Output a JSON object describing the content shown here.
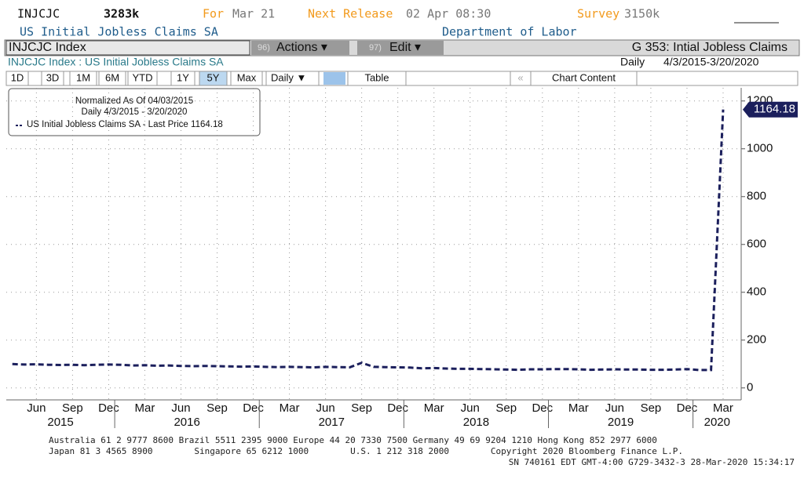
{
  "header": {
    "ticker": "INJCJC",
    "price": "3283k",
    "for_label": "For",
    "for_value": "Mar 21",
    "next_label": "Next Release",
    "next_value": "02 Apr 08:30",
    "survey_label": "Survey",
    "survey_value": "3150k",
    "name": "US Initial Jobless Claims SA",
    "source": "Department of Labor"
  },
  "toolbar": {
    "security": "INJCJC Index",
    "actions_num": "96)",
    "actions": "Actions ▾",
    "edit_num": "97)",
    "edit": "Edit ▾",
    "page": "G 353: Intial Jobless Claims"
  },
  "chart_header": {
    "title": "INJCJC Index : US Initial Jobless Claims SA",
    "frequency": "Daily",
    "range": "4/3/2015-3/20/2020"
  },
  "buttons": [
    "1D",
    "3D",
    "1M",
    "6M",
    "YTD",
    "1Y",
    "5Y",
    "Max",
    "Daily ▼",
    "Table",
    "«",
    "Chart Content"
  ],
  "legend": {
    "line1": "Normalized As Of 04/03/2015",
    "line2": "Daily 4/3/2015 - 3/20/2020",
    "last_price_label": "- Last Price"
  },
  "footer": [
    "Australia 61 2 9777 8600 Brazil 5511 2395 9000 Europe 44 20 7330 7500 Germany 49 69 9204 1210 Hong Kong 852 2977 6000",
    "Japan 81 3 4565 8900        Singapore 65 6212 1000        U.S. 1 212 318 2000        Copyright 2020 Bloomberg Finance L.P.",
    "SN 740161 EDT  GMT-4:00 G729-3432-3 28-Mar-2020 15:34:17"
  ],
  "chart_data": {
    "type": "line",
    "x": [
      "2015-04",
      "2015-05",
      "2015-06",
      "2015-07",
      "2015-08",
      "2015-09",
      "2015-10",
      "2015-11",
      "2015-12",
      "2016-01",
      "2016-02",
      "2016-03",
      "2016-04",
      "2016-05",
      "2016-06",
      "2016-07",
      "2016-08",
      "2016-09",
      "2016-10",
      "2016-11",
      "2016-12",
      "2017-01",
      "2017-02",
      "2017-03",
      "2017-04",
      "2017-05",
      "2017-06",
      "2017-07",
      "2017-08",
      "2017-09",
      "2017-10",
      "2017-11",
      "2017-12",
      "2018-01",
      "2018-02",
      "2018-03",
      "2018-04",
      "2018-05",
      "2018-06",
      "2018-07",
      "2018-08",
      "2018-09",
      "2018-10",
      "2018-11",
      "2018-12",
      "2019-01",
      "2019-02",
      "2019-03",
      "2019-04",
      "2019-05",
      "2019-06",
      "2019-07",
      "2019-08",
      "2019-09",
      "2019-10",
      "2019-11",
      "2019-12",
      "2020-01",
      "2020-02",
      "2020-03"
    ],
    "series": [
      {
        "name": "US Initial Jobless Claims SA",
        "color": "#1b1f5c",
        "values": [
          100,
          98,
          99,
          97,
          96,
          97,
          95,
          97,
          98,
          97,
          94,
          95,
          93,
          94,
          92,
          91,
          92,
          91,
          90,
          89,
          90,
          88,
          87,
          88,
          87,
          86,
          88,
          87,
          86,
          105,
          88,
          87,
          86,
          85,
          82,
          83,
          81,
          80,
          80,
          79,
          78,
          77,
          76,
          78,
          78,
          79,
          79,
          78,
          76,
          77,
          78,
          77,
          77,
          76,
          76,
          77,
          79,
          75,
          75,
          1164.18
        ]
      }
    ],
    "xlim": [
      "2015-04",
      "2020-05"
    ],
    "xticks": [
      {
        "value": "2015-06",
        "label": "Jun"
      },
      {
        "value": "2015-09",
        "label": "Sep"
      },
      {
        "value": "2015-12",
        "label": "Dec"
      },
      {
        "value": "2016-03",
        "label": "Mar"
      },
      {
        "value": "2016-06",
        "label": "Jun"
      },
      {
        "value": "2016-09",
        "label": "Sep"
      },
      {
        "value": "2016-12",
        "label": "Dec"
      },
      {
        "value": "2017-03",
        "label": "Mar"
      },
      {
        "value": "2017-06",
        "label": "Jun"
      },
      {
        "value": "2017-09",
        "label": "Sep"
      },
      {
        "value": "2017-12",
        "label": "Dec"
      },
      {
        "value": "2018-03",
        "label": "Mar"
      },
      {
        "value": "2018-06",
        "label": "Jun"
      },
      {
        "value": "2018-09",
        "label": "Sep"
      },
      {
        "value": "2018-12",
        "label": "Dec"
      },
      {
        "value": "2019-03",
        "label": "Mar"
      },
      {
        "value": "2019-06",
        "label": "Jun"
      },
      {
        "value": "2019-09",
        "label": "Sep"
      },
      {
        "value": "2019-12",
        "label": "Dec"
      },
      {
        "value": "2020-03",
        "label": "Mar"
      }
    ],
    "years": [
      "2015",
      "2016",
      "2017",
      "2018",
      "2019",
      "2020"
    ],
    "ylim": [
      -50,
      1255
    ],
    "yticks": [
      0,
      200,
      400,
      600,
      800,
      1000,
      1200
    ],
    "grid": true
  }
}
